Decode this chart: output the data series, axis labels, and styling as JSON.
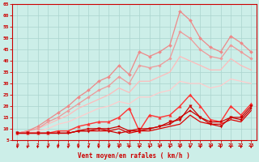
{
  "xlabel": "Vent moyen/en rafales ( km/h )",
  "background_color": "#cceee8",
  "grid_color": "#aad4ce",
  "x_values": [
    0,
    1,
    2,
    3,
    4,
    5,
    6,
    7,
    8,
    9,
    10,
    11,
    12,
    13,
    14,
    15,
    16,
    17,
    18,
    19,
    20,
    21,
    22,
    23
  ],
  "ylim": [
    5,
    65
  ],
  "yticks": [
    5,
    10,
    15,
    20,
    25,
    30,
    35,
    40,
    45,
    50,
    55,
    60,
    65
  ],
  "series": [
    {
      "color": "#ee8888",
      "linewidth": 0.9,
      "marker": "D",
      "markersize": 2.0,
      "values": [
        8,
        9,
        11,
        14,
        17,
        20,
        24,
        27,
        31,
        33,
        38,
        34,
        44,
        42,
        44,
        47,
        62,
        58,
        50,
        46,
        44,
        51,
        48,
        44
      ]
    },
    {
      "color": "#ee9999",
      "linewidth": 0.9,
      "marker": "D",
      "markersize": 1.8,
      "values": [
        8,
        9,
        10,
        13,
        15,
        18,
        21,
        24,
        27,
        29,
        33,
        30,
        38,
        37,
        38,
        41,
        53,
        50,
        45,
        42,
        41,
        47,
        44,
        41
      ]
    },
    {
      "color": "#ffbbbb",
      "linewidth": 0.9,
      "marker": null,
      "markersize": 0,
      "values": [
        8,
        9,
        10,
        12,
        14,
        16,
        19,
        21,
        23,
        25,
        28,
        26,
        31,
        31,
        33,
        35,
        42,
        40,
        38,
        36,
        36,
        41,
        38,
        36
      ]
    },
    {
      "color": "#ffcccc",
      "linewidth": 0.9,
      "marker": null,
      "markersize": 0,
      "values": [
        8,
        8,
        9,
        10,
        12,
        13,
        15,
        17,
        19,
        20,
        22,
        21,
        24,
        24,
        26,
        27,
        31,
        30,
        30,
        28,
        29,
        32,
        31,
        30
      ]
    },
    {
      "color": "#ff3333",
      "linewidth": 1.0,
      "marker": "^",
      "markersize": 2.5,
      "values": [
        8,
        8,
        8,
        8,
        9,
        9,
        11,
        12,
        13,
        13,
        15,
        19,
        9,
        16,
        15,
        16,
        20,
        25,
        20,
        14,
        13,
        20,
        16,
        21
      ]
    },
    {
      "color": "#cc0000",
      "linewidth": 0.9,
      "marker": "v",
      "markersize": 2.5,
      "values": [
        8,
        8,
        8,
        8,
        8,
        8,
        9,
        9,
        10,
        9,
        8,
        9,
        9,
        10,
        11,
        13,
        14,
        20,
        15,
        12,
        11,
        15,
        15,
        20
      ]
    },
    {
      "color": "#cc0000",
      "linewidth": 0.9,
      "marker": "s",
      "markersize": 2.0,
      "values": [
        8,
        8,
        8,
        8,
        8,
        8,
        9,
        10,
        10,
        10,
        11,
        9,
        10,
        10,
        11,
        12,
        15,
        18,
        15,
        13,
        13,
        15,
        14,
        19
      ]
    },
    {
      "color": "#dd0000",
      "linewidth": 0.9,
      "marker": null,
      "markersize": 0,
      "values": [
        8,
        8,
        8,
        8,
        8,
        8,
        9,
        9,
        9,
        9,
        10,
        8,
        9,
        9,
        10,
        11,
        12,
        16,
        13,
        12,
        12,
        14,
        13,
        18
      ]
    }
  ],
  "tick_color": "#cc0000",
  "label_color": "#cc0000",
  "axis_color": "#cc0000",
  "arrow_color": "#cc0000"
}
